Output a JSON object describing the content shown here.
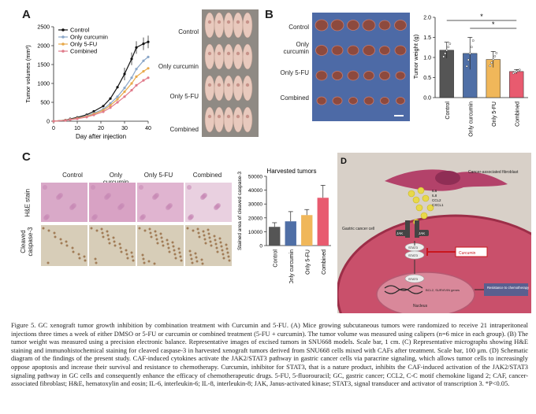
{
  "panels": {
    "A": {
      "label": "A",
      "ylabel": "Tumor volumes (mm³)",
      "xlabel": "Day after injection",
      "legend": [
        "Control",
        "Only curcumin",
        "Only 5-FU",
        "Combined"
      ],
      "row_labels": [
        "Control",
        "Only curcumin",
        "Only 5-FU",
        "Combined"
      ]
    },
    "B": {
      "label": "B",
      "row_labels": [
        "Control",
        "Only curcumin",
        "Only 5-FU",
        "Combined"
      ],
      "ylabel": "Tumor weight (g)",
      "sig": [
        "*",
        "*"
      ]
    },
    "C": {
      "label": "C",
      "col_labels": [
        "Control",
        "Only curcumin",
        "Only 5-FU",
        "Combined"
      ],
      "row_labels": [
        "H&E stain",
        "Cleaved caspase-3"
      ],
      "bar_title": "Harvested tumors",
      "ylabel": "Stained area of cleaved caspase-3"
    },
    "D": {
      "label": "D",
      "caf": "Cancer-associated fibroblast",
      "cytokines": [
        "IL6",
        "IL8",
        "CCL2",
        "CXCL1"
      ],
      "gc_cell": "Gastric cancer cell",
      "jak": "JAK",
      "stat3": "STAT3",
      "curcumin": "Curcumin",
      "genes": "BCL2, SURVIVIN genes",
      "resistance": "Resistance to chemotherapy",
      "nucleus": "Nucleus"
    }
  },
  "chart_data": [
    {
      "type": "line",
      "title": "",
      "xlabel": "Day after injection",
      "ylabel": "Tumor volumes (mm³)",
      "x": [
        0,
        5,
        7,
        10,
        14,
        17,
        21,
        24,
        27,
        30,
        33,
        35,
        38,
        40
      ],
      "xlim": [
        0,
        40
      ],
      "ylim": [
        0,
        2500
      ],
      "xticks": [
        0,
        10,
        20,
        30,
        40
      ],
      "yticks": [
        0,
        500,
        1000,
        1500,
        2000,
        2500
      ],
      "series": [
        {
          "name": "Control",
          "color": "#111111",
          "values": [
            0,
            30,
            60,
            100,
            170,
            260,
            400,
            600,
            900,
            1250,
            1650,
            1950,
            2050,
            2100
          ]
        },
        {
          "name": "Only curcumin",
          "color": "#8aa6c8",
          "values": [
            0,
            25,
            50,
            80,
            140,
            210,
            320,
            470,
            650,
            880,
            1150,
            1380,
            1600,
            1700
          ]
        },
        {
          "name": "Only 5-FU",
          "color": "#e8a94a",
          "values": [
            0,
            25,
            45,
            75,
            125,
            190,
            290,
            420,
            580,
            780,
            1000,
            1180,
            1320,
            1400
          ]
        },
        {
          "name": "Combined",
          "color": "#e07a8a",
          "values": [
            0,
            20,
            40,
            65,
            110,
            165,
            250,
            360,
            500,
            650,
            820,
            950,
            1080,
            1150
          ]
        }
      ]
    },
    {
      "type": "bar",
      "title": "",
      "ylabel": "Tumor weight (g)",
      "categories": [
        "Control",
        "Only curcumin",
        "Only 5-FU",
        "Combined"
      ],
      "values": [
        1.18,
        1.1,
        0.95,
        0.65
      ],
      "errors": [
        0.2,
        0.4,
        0.2,
        0.05
      ],
      "colors": [
        "#555555",
        "#4f6fa6",
        "#f0b75a",
        "#e85b6f"
      ],
      "ylim": [
        0,
        2.0
      ],
      "yticks": [
        0.0,
        0.5,
        1.0,
        1.5,
        2.0
      ]
    },
    {
      "type": "bar",
      "title": "Harvested tumors",
      "ylabel": "Stained area of cleaved caspase-3",
      "categories": [
        "Control",
        "Only curcumin",
        "Only 5-FU",
        "Combined"
      ],
      "values": [
        13500,
        17500,
        22000,
        34500
      ],
      "errors": [
        3000,
        7000,
        4000,
        9000
      ],
      "colors": [
        "#555555",
        "#4f6fa6",
        "#f0b75a",
        "#e85b6f"
      ],
      "ylim": [
        0,
        50000
      ],
      "yticks": [
        0,
        10000,
        20000,
        30000,
        40000,
        50000
      ]
    }
  ],
  "caption": "Figure 5. GC xenograft tumor growth inhibition by combination treatment with Curcumin and 5-FU. (A) Mice growing subcutaneous tumors were randomized to receive 21 intraperitoneal injections three times a week of either DMSO or 5-FU or curcumin or combined treatment (5-FU + curcumin). The tumor volume was measured using calipers (n=6 mice in each group). (B) The tumor weight was measured using a precision electronic balance. Representative images of excised tumors in SNU668 models. Scale bar, 1 cm. (C) Representative micrographs showing H&E staining and immunohistochemical staining for cleaved caspase-3 in harvested xenograft tumors derived from SNU668 cells mixed with CAFs after treatment. Scale bar, 100 μm. (D) Schematic diagram of the findings of the present study. CAF-induced cytokines activate the JAK2/STAT3 pathway in gastric cancer cells via paracrine signaling, which allows tumor cells to increasingly oppose apoptosis and increase their survival and resistance to chemotherapy. Curcumin, inhibitor for STAT3, that is a nature product, inhibits the CAF-induced activation of the JAK2/STAT3 signaling pathway in GC cells and consequently enhance the efficacy of chemotherapeutic drugs. 5-FU, 5-fluorouracil; GC, gastric cancer; CCL2, C-C motif chemokine ligand 2; CAF, cancer-associated fibroblast; H&E, hematoxylin and eosin; IL-6, interleukin-6; IL-8, interleukin-8; JAK, Janus-activated kinase; STAT3, signal transducer and activator of transcription 3. *P<0.05."
}
